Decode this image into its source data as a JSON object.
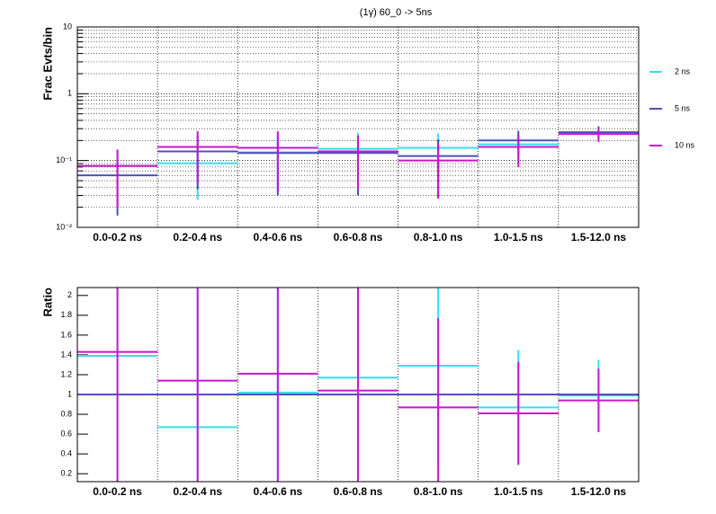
{
  "chart_data": [
    {
      "type": "errorbar",
      "title": "(1γ) 60_0 -> 5ns",
      "y_label": "Frac Evts/bin",
      "log_y": true,
      "legend": "right",
      "categories": [
        "0.0-0.2 ns",
        "0.2-0.4 ns",
        "0.4-0.6 ns",
        "0.6-0.8 ns",
        "0.8-1.0 ns",
        "1.0-1.5 ns",
        "1.5-12.0 ns"
      ],
      "ylim": [
        0.01,
        10
      ],
      "yticks": [
        {
          "value": 0.01,
          "label": "10⁻²"
        },
        {
          "value": 0.1,
          "label": "10⁻¹"
        },
        1,
        10
      ],
      "series": [
        {
          "name": "2 ns",
          "color": "#33e0ee",
          "values": [
            0.083,
            0.091,
            0.133,
            0.15,
            0.155,
            0.175,
            0.26
          ],
          "errors": [
            0.06,
            0.065,
            0.1,
            0.11,
            0.1,
            0.08,
            0.06
          ]
        },
        {
          "name": "5 ns",
          "color": "#5050b8",
          "values": [
            0.06,
            0.137,
            0.13,
            0.13,
            0.117,
            0.2,
            0.266
          ],
          "errors": [
            0.045,
            0.1,
            0.1,
            0.1,
            0.09,
            0.08,
            0.06
          ]
        },
        {
          "name": "10 ns",
          "color": "#cc14cc",
          "values": [
            0.083,
            0.16,
            0.155,
            0.137,
            0.1,
            0.16,
            0.25
          ],
          "errors": [
            0.063,
            0.115,
            0.12,
            0.1,
            0.073,
            0.08,
            0.06
          ]
        }
      ]
    },
    {
      "type": "errorbar",
      "y_label": "Ratio",
      "log_y": false,
      "categories": [
        "0.0-0.2 ns",
        "0.2-0.4 ns",
        "0.4-0.6 ns",
        "0.6-0.8 ns",
        "0.8-1.0 ns",
        "1.0-1.5 ns",
        "1.5-12.0 ns"
      ],
      "ylim": [
        0.12,
        2.08
      ],
      "yticks": [
        0.2,
        0.4,
        0.6,
        0.8,
        1,
        1.2,
        1.4,
        1.6,
        1.8,
        2
      ],
      "series": [
        {
          "color": "#33e0ee",
          "values": [
            1.39,
            0.67,
            1.02,
            1.17,
            1.29,
            0.87,
            0.99
          ],
          "errors": [
            1.4,
            1.4,
            1.4,
            1.2,
            1.0,
            0.58,
            0.36
          ]
        },
        {
          "color": "#5050b8",
          "values": [
            1,
            1,
            1,
            1,
            1,
            1,
            1
          ],
          "errors": [
            0,
            0,
            0,
            0,
            0,
            0,
            0
          ]
        },
        {
          "color": "#cc14cc",
          "values": [
            1.43,
            1.14,
            1.21,
            1.04,
            0.87,
            0.81,
            0.94
          ],
          "errors": [
            1.5,
            1.5,
            1.5,
            1.3,
            0.9,
            0.52,
            0.32
          ]
        }
      ]
    }
  ]
}
